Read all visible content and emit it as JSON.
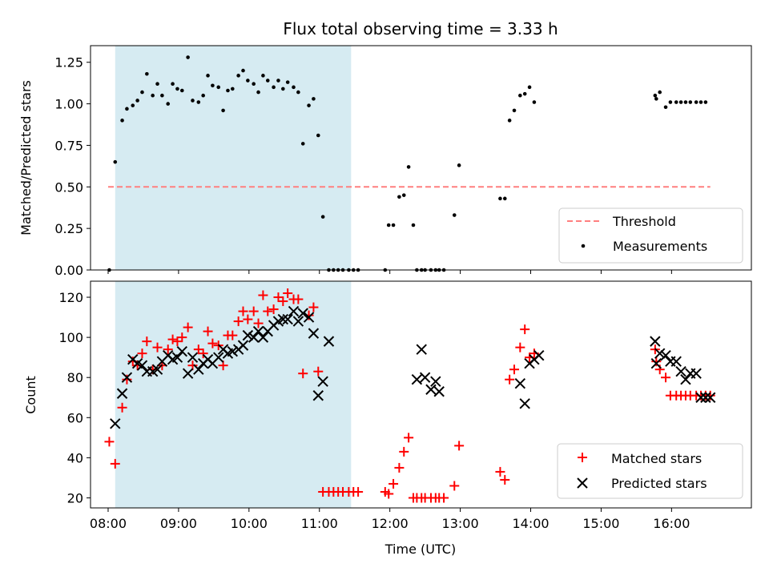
{
  "figure": {
    "title": "Flux total observing time = 3.33 h",
    "xlabel": "Time (UTC)",
    "x_ticks": [
      "08:00",
      "09:00",
      "10:00",
      "11:00",
      "12:00",
      "13:00",
      "14:00",
      "15:00",
      "16:00"
    ]
  },
  "colors": {
    "shade": "#add8e6",
    "threshold": "#ff7f7f",
    "matched": "#ff0000",
    "predicted": "#000000",
    "measurement": "#000000"
  },
  "chart_data": [
    {
      "type": "scatter",
      "panel": "top",
      "ylabel": "Matched/Predicted stars",
      "ylim": [
        0,
        1.35
      ],
      "xlim": [
        "07:45",
        "17:08"
      ],
      "y_ticks": [
        "0.00",
        "0.25",
        "0.50",
        "0.75",
        "1.00",
        "1.25"
      ],
      "shaded_interval": [
        "08:06",
        "11:27"
      ],
      "threshold": {
        "name": "Threshold",
        "value": 0.5,
        "x_range": [
          "08:00",
          "16:33"
        ]
      },
      "legend": {
        "placement": "lower-right",
        "entries": [
          "Threshold",
          "Measurements"
        ]
      },
      "series": [
        {
          "name": "Measurements",
          "x": [
            "08:01",
            "08:06",
            "08:12",
            "08:16",
            "08:21",
            "08:25",
            "08:29",
            "08:33",
            "08:38",
            "08:42",
            "08:46",
            "08:51",
            "08:55",
            "08:59",
            "09:03",
            "09:08",
            "09:12",
            "09:17",
            "09:21",
            "09:25",
            "09:29",
            "09:34",
            "09:38",
            "09:42",
            "09:46",
            "09:51",
            "09:55",
            "09:59",
            "10:04",
            "10:08",
            "10:12",
            "10:16",
            "10:21",
            "10:25",
            "10:29",
            "10:33",
            "10:38",
            "10:42",
            "10:46",
            "10:51",
            "10:55",
            "10:59",
            "11:03",
            "11:08",
            "11:12",
            "11:16",
            "11:20",
            "11:25",
            "11:29",
            "11:33",
            "11:56",
            "11:59",
            "12:03",
            "12:08",
            "12:12",
            "12:16",
            "12:20",
            "12:23",
            "12:27",
            "12:30",
            "12:35",
            "12:39",
            "12:42",
            "12:46",
            "12:55",
            "12:59",
            "13:34",
            "13:38",
            "13:42",
            "13:46",
            "13:51",
            "13:55",
            "13:59",
            "14:03",
            "15:46",
            "15:47",
            "15:50",
            "15:55",
            "15:59",
            "16:04",
            "16:08",
            "16:12",
            "16:16",
            "16:21",
            "16:25",
            "16:29"
          ],
          "y": [
            0.0,
            0.65,
            0.9,
            0.97,
            0.99,
            1.02,
            1.07,
            1.18,
            1.05,
            1.12,
            1.05,
            1.0,
            1.12,
            1.09,
            1.08,
            1.28,
            1.02,
            1.01,
            1.05,
            1.17,
            1.11,
            1.1,
            0.96,
            1.08,
            1.09,
            1.17,
            1.2,
            1.14,
            1.12,
            1.07,
            1.17,
            1.14,
            1.1,
            1.14,
            1.09,
            1.13,
            1.1,
            1.07,
            0.76,
            0.99,
            1.03,
            0.81,
            0.32,
            0.0,
            0.0,
            0.0,
            0.0,
            0.0,
            0.0,
            0.0,
            0.0,
            0.27,
            0.27,
            0.44,
            0.45,
            0.62,
            0.27,
            0.0,
            0.0,
            0.0,
            0.0,
            0.0,
            0.0,
            0.0,
            0.33,
            0.63,
            0.43,
            0.43,
            0.9,
            0.96,
            1.05,
            1.06,
            1.1,
            1.01,
            1.05,
            1.03,
            1.07,
            0.98,
            1.01,
            1.01,
            1.01,
            1.01,
            1.01,
            1.01,
            1.01,
            1.01
          ]
        }
      ]
    },
    {
      "type": "scatter",
      "panel": "bottom",
      "ylabel": "Count",
      "ylim": [
        15,
        128
      ],
      "xlim": [
        "07:45",
        "17:08"
      ],
      "y_ticks": [
        "20",
        "40",
        "60",
        "80",
        "100",
        "120"
      ],
      "shaded_interval": [
        "08:06",
        "11:27"
      ],
      "legend": {
        "placement": "lower-right",
        "entries": [
          "Matched stars",
          "Predicted stars"
        ]
      },
      "series": [
        {
          "name": "Matched stars",
          "marker": "plus",
          "x": [
            "08:01",
            "08:06",
            "08:12",
            "08:16",
            "08:21",
            "08:25",
            "08:29",
            "08:33",
            "08:38",
            "08:42",
            "08:46",
            "08:51",
            "08:55",
            "08:59",
            "09:03",
            "09:08",
            "09:12",
            "09:17",
            "09:21",
            "09:25",
            "09:29",
            "09:34",
            "09:38",
            "09:42",
            "09:46",
            "09:51",
            "09:55",
            "09:59",
            "10:04",
            "10:08",
            "10:12",
            "10:16",
            "10:21",
            "10:25",
            "10:29",
            "10:33",
            "10:38",
            "10:42",
            "10:46",
            "10:51",
            "10:55",
            "10:59",
            "11:03",
            "11:08",
            "11:12",
            "11:16",
            "11:20",
            "11:25",
            "11:29",
            "11:33",
            "11:56",
            "11:59",
            "12:03",
            "12:08",
            "12:12",
            "12:16",
            "12:20",
            "12:23",
            "12:27",
            "12:30",
            "12:35",
            "12:39",
            "12:42",
            "12:46",
            "12:55",
            "12:59",
            "13:34",
            "13:38",
            "13:42",
            "13:46",
            "13:51",
            "13:55",
            "13:59",
            "14:03",
            "15:46",
            "15:47",
            "15:50",
            "15:55",
            "15:59",
            "16:04",
            "16:08",
            "16:12",
            "16:16",
            "16:21",
            "16:25",
            "16:29",
            "16:33"
          ],
          "y": [
            48,
            37,
            65,
            79,
            88,
            86,
            92,
            98,
            84,
            95,
            86,
            94,
            99,
            98,
            100,
            105,
            86,
            94,
            92,
            103,
            97,
            96,
            86,
            101,
            101,
            108,
            113,
            109,
            113,
            107,
            121,
            113,
            114,
            120,
            118,
            122,
            119,
            119,
            82,
            111,
            115,
            83,
            23,
            23,
            23,
            23,
            23,
            23,
            23,
            23,
            23,
            22,
            27,
            35,
            43,
            50,
            20,
            20,
            20,
            20,
            20,
            20,
            20,
            20,
            26,
            46,
            33,
            29,
            79,
            84,
            95,
            104,
            90,
            92,
            94,
            88,
            84,
            80,
            71,
            71,
            71,
            71,
            71,
            71,
            71,
            71,
            71
          ]
        },
        {
          "name": "Predicted stars",
          "marker": "x",
          "x": [
            "08:06",
            "08:12",
            "08:16",
            "08:21",
            "08:25",
            "08:29",
            "08:33",
            "08:38",
            "08:42",
            "08:46",
            "08:51",
            "08:55",
            "08:59",
            "09:03",
            "09:08",
            "09:12",
            "09:17",
            "09:21",
            "09:25",
            "09:29",
            "09:34",
            "09:38",
            "09:42",
            "09:46",
            "09:51",
            "09:55",
            "09:59",
            "10:04",
            "10:08",
            "10:12",
            "10:16",
            "10:21",
            "10:25",
            "10:29",
            "10:33",
            "10:38",
            "10:42",
            "10:46",
            "10:51",
            "10:55",
            "10:59",
            "11:03",
            "11:08",
            "12:23",
            "12:27",
            "12:30",
            "12:35",
            "12:39",
            "12:42",
            "13:51",
            "13:55",
            "13:59",
            "14:03",
            "14:07",
            "15:46",
            "15:47",
            "15:50",
            "15:55",
            "15:59",
            "16:04",
            "16:08",
            "16:12",
            "16:16",
            "16:21",
            "16:25",
            "16:29",
            "16:33"
          ],
          "y": [
            57,
            72,
            80,
            89,
            87,
            86,
            83,
            83,
            84,
            88,
            91,
            89,
            90,
            93,
            82,
            90,
            84,
            87,
            89,
            87,
            90,
            94,
            92,
            93,
            94,
            96,
            101,
            100,
            103,
            100,
            103,
            106,
            108,
            109,
            109,
            113,
            108,
            112,
            110,
            102,
            71,
            78,
            98,
            79,
            94,
            80,
            74,
            78,
            73,
            77,
            67,
            87,
            89,
            91,
            98,
            87,
            92,
            91,
            88,
            88,
            83,
            79,
            82,
            82,
            70,
            70,
            70
          ]
        }
      ]
    }
  ]
}
